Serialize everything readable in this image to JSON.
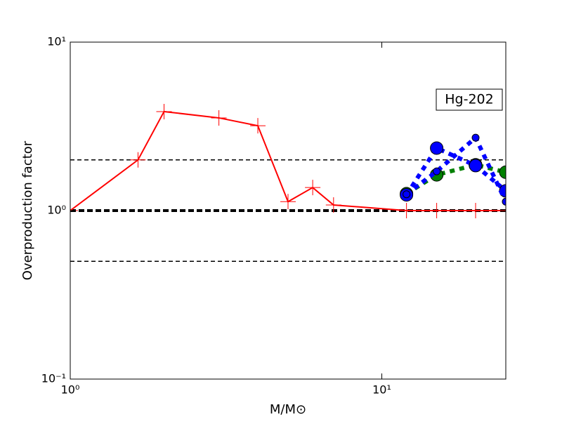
{
  "chart_data": {
    "type": "line",
    "xlabel": "M/M⊙",
    "ylabel": "Overproduction factor",
    "annotation": "Hg-202",
    "xscale": "log",
    "yscale": "log",
    "xlim": [
      1,
      25
    ],
    "ylim": [
      0.1,
      10
    ],
    "xticks": [
      {
        "value": 1,
        "label": "10⁰"
      },
      {
        "value": 10,
        "label": "10¹"
      }
    ],
    "yticks": [
      {
        "value": 0.1,
        "label": "10⁻¹"
      },
      {
        "value": 1,
        "label": "10⁰"
      },
      {
        "value": 10,
        "label": "10¹"
      }
    ],
    "reference_lines": [
      2,
      1,
      0.5
    ],
    "series": [
      {
        "color": "#ff0000",
        "marker": "plus",
        "linestyle": "solid",
        "x": [
          1,
          1.65,
          2,
          3,
          4,
          5,
          6,
          7,
          12,
          15,
          20,
          25
        ],
        "values": [
          1.0,
          2.0,
          3.87,
          3.55,
          3.19,
          1.13,
          1.37,
          1.08,
          1.0,
          1.0,
          1.0,
          1.0
        ]
      },
      {
        "color": "#008000",
        "marker": "circle",
        "linestyle": "dotted",
        "x": [
          12,
          15,
          20,
          25
        ],
        "values": [
          1.26,
          1.63,
          1.87,
          1.69
        ]
      },
      {
        "color": "#0000ff",
        "marker": "circle",
        "linestyle": "dotted",
        "x": [
          12,
          15,
          20,
          25
        ],
        "values": [
          1.24,
          2.35,
          1.85,
          1.31
        ]
      },
      {
        "color": "#0000ff",
        "marker": "small-circle",
        "linestyle": "dotted",
        "x": [
          12,
          15,
          20,
          25
        ],
        "values": [
          1.25,
          1.71,
          2.71,
          1.13
        ]
      }
    ]
  }
}
